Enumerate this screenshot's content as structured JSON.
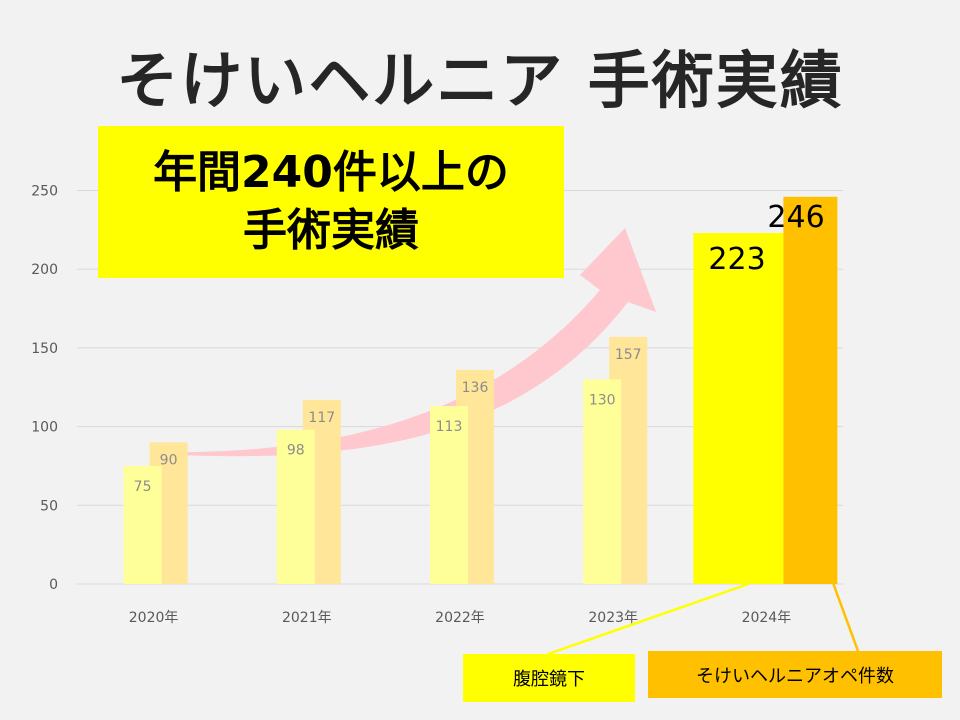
{
  "title": "そけいヘルニア 手術実績",
  "callout": {
    "line1": "年間240件以上の",
    "line2": "手術実績"
  },
  "legend": {
    "laparoscopic": "腹腔鏡下",
    "total": "そけいヘルニアオペ件数"
  },
  "colors": {
    "lap_faded": "#ffff99",
    "total_faded": "#ffe699",
    "lap_strong": "#ffff00",
    "total_strong": "#ffc000",
    "arrow": "#ffc7ce",
    "grid": "#d9d9d9"
  },
  "chart_data": {
    "type": "bar",
    "categories": [
      "2020年",
      "2021年",
      "2022年",
      "2023年",
      "2024年"
    ],
    "series": [
      {
        "name": "腹腔鏡下",
        "values": [
          75,
          98,
          113,
          130,
          223
        ]
      },
      {
        "name": "そけいヘルニアオペ件数",
        "values": [
          90,
          117,
          136,
          157,
          246
        ]
      }
    ],
    "ylim": [
      0,
      250
    ],
    "yticks": [
      0,
      50,
      100,
      150,
      200,
      250
    ],
    "grid": true,
    "legend_position": "bottom-right"
  }
}
